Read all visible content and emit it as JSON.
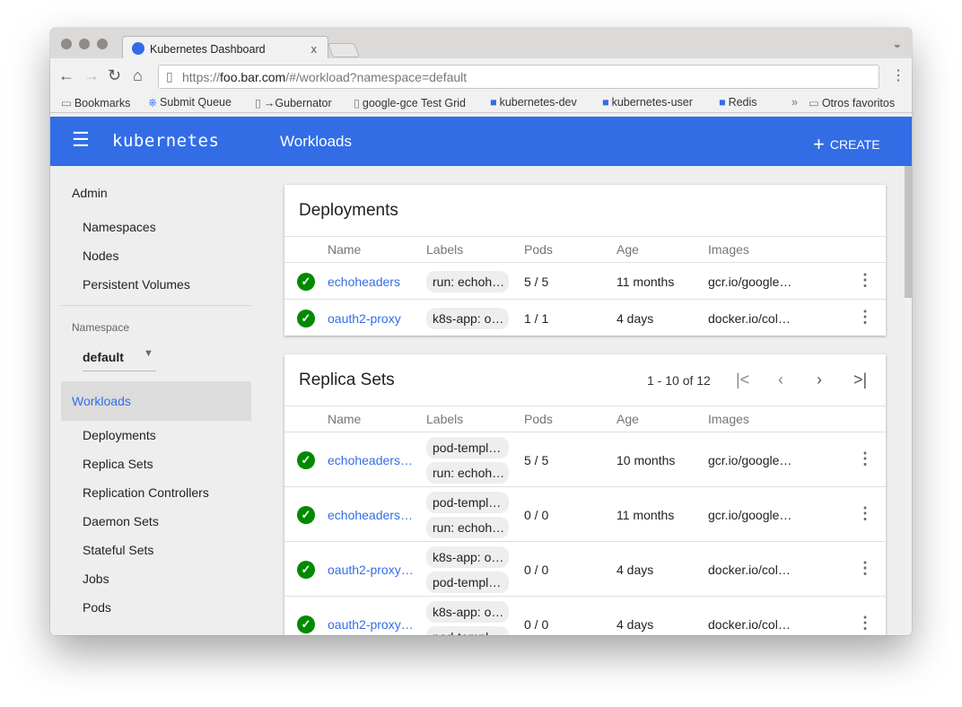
{
  "browser": {
    "tab_title": "Kubernetes Dashboard",
    "tab_close": "x",
    "url_prefix": "https://",
    "url_host": "foo.bar.com",
    "url_path": "/#/workload?namespace=default",
    "bookmarks": [
      {
        "label": "Bookmarks",
        "icon": "folder-icon"
      },
      {
        "label": "Submit Queue",
        "icon": "kubernetes-icon"
      },
      {
        "label": "→Gubernator",
        "icon": "page-icon"
      },
      {
        "label": "google-gce Test Grid",
        "icon": "page-icon"
      },
      {
        "label": "kubernetes-dev",
        "icon": "group-icon"
      },
      {
        "label": "kubernetes-user",
        "icon": "group-icon"
      },
      {
        "label": "Redis",
        "icon": "group-icon"
      }
    ],
    "overflow": "»",
    "other_bookmarks": "Otros favoritos"
  },
  "header": {
    "brand": "kubernetes",
    "title": "Workloads",
    "create_label": "CREATE",
    "color": "#326de6"
  },
  "sidebar": {
    "admin": "Admin",
    "admin_items": [
      "Namespaces",
      "Nodes",
      "Persistent Volumes"
    ],
    "namespace_label": "Namespace",
    "namespace_value": "default",
    "workloads": "Workloads",
    "workload_items": [
      "Deployments",
      "Replica Sets",
      "Replication Controllers",
      "Daemon Sets",
      "Stateful Sets",
      "Jobs",
      "Pods"
    ]
  },
  "columns": [
    "Name",
    "Labels",
    "Pods",
    "Age",
    "Images"
  ],
  "deployments": {
    "title": "Deployments",
    "rows": [
      {
        "name": "echoheaders",
        "labels": [
          "run: echoh…"
        ],
        "pods": "5 / 5",
        "age": "11 months",
        "images": "gcr.io/google…",
        "status": "ok"
      },
      {
        "name": "oauth2-proxy",
        "labels": [
          "k8s-app: o…"
        ],
        "pods": "1 / 1",
        "age": "4 days",
        "images": "docker.io/col…",
        "status": "ok"
      }
    ]
  },
  "replica_sets": {
    "title": "Replica Sets",
    "pagination": "1 - 10 of 12",
    "rows": [
      {
        "name": "echoheaders…",
        "labels": [
          "pod-templ…",
          "run: echoh…"
        ],
        "pods": "5 / 5",
        "age": "10 months",
        "images": "gcr.io/google…",
        "status": "ok"
      },
      {
        "name": "echoheaders…",
        "labels": [
          "pod-templ…",
          "run: echoh…"
        ],
        "pods": "0 / 0",
        "age": "11 months",
        "images": "gcr.io/google…",
        "status": "ok"
      },
      {
        "name": "oauth2-proxy…",
        "labels": [
          "k8s-app: o…",
          "pod-templ…"
        ],
        "pods": "0 / 0",
        "age": "4 days",
        "images": "docker.io/col…",
        "status": "ok"
      },
      {
        "name": "oauth2-proxy…",
        "labels": [
          "k8s-app: o…",
          "pod-templ…"
        ],
        "pods": "0 / 0",
        "age": "4 days",
        "images": "docker.io/col…",
        "status": "ok"
      }
    ]
  }
}
